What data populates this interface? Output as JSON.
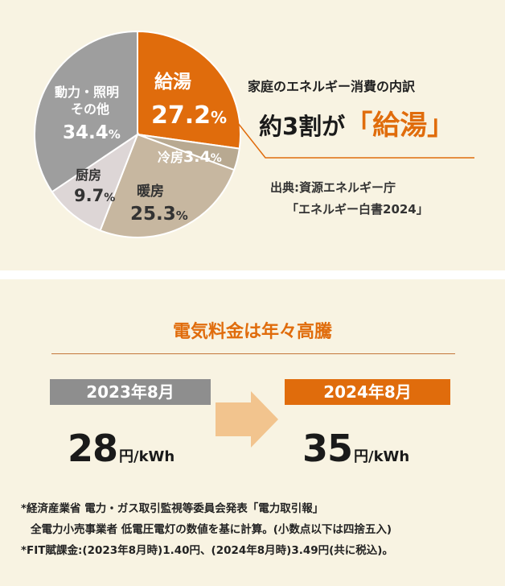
{
  "chart_data": {
    "type": "pie",
    "title": "家庭のエネルギー消費の内訳",
    "slices": [
      {
        "label": "給湯",
        "value": 27.2,
        "color": "#e06c0c"
      },
      {
        "label": "冷房",
        "value": 3.4,
        "color": "#b8a991"
      },
      {
        "label": "暖房",
        "value": 25.3,
        "color": "#c7b7a0"
      },
      {
        "label": "厨房",
        "value": 9.7,
        "color": "#ddd6d6"
      },
      {
        "label": "動力・照明その他",
        "value": 34.4,
        "color": "#9e9e9e"
      }
    ],
    "labels": {
      "kyuto": {
        "name": "給湯",
        "num": "27.2",
        "pct": "%"
      },
      "reibo": {
        "name": "冷房",
        "num": "3.4",
        "pct": "%"
      },
      "danbo": {
        "name": "暖房",
        "num": "25.3",
        "pct": "%"
      },
      "chubo": {
        "name": "厨房",
        "num": "9.7",
        "pct": "%"
      },
      "doryoku": {
        "name1": "動力・照明",
        "name2": "その他",
        "num": "34.4",
        "pct": "%"
      }
    }
  },
  "header": {
    "title": "家庭のエネルギー消費の内訳",
    "headline_pre": "約3割が",
    "headline_highlight": "「給湯」",
    "source_line1": "出典:資源エネルギー庁",
    "source_line2": "「エネルギー白書2024」"
  },
  "price": {
    "title": "電気料金は年々高騰",
    "before": {
      "label": "2023年8月",
      "value": "28",
      "unit": "円/kWh"
    },
    "after": {
      "label": "2024年8月",
      "value": "35",
      "unit": "円/kWh"
    }
  },
  "notes": {
    "line1": "*経済産業省 電力・ガス取引監視等委員会発表「電力取引報」",
    "line2": "全電力小売事業者 低電圧電灯の数値を基に計算。(小数点以下は四捨五入)",
    "line3": "*FIT賦課金:(2023年8月時)1.40円、(2024年8月時)3.49円(共に税込)。"
  },
  "colors": {
    "accent": "#e06c0c",
    "panel_bg": "#f8f3e2",
    "gray_box": "#8e8e8e",
    "arrow": "#f2c48e"
  }
}
